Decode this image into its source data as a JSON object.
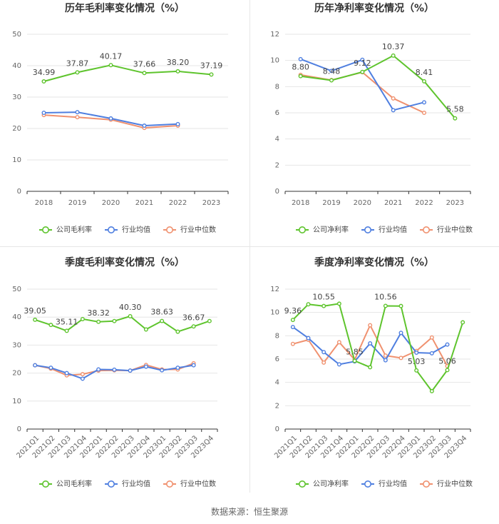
{
  "colors": {
    "company": "#5ec42d",
    "industry_avg": "#4f7fe0",
    "industry_median": "#f0916f",
    "grid": "#e6e6e6",
    "axis": "#333333",
    "tick_text": "#666666"
  },
  "source_text": "数据来源：恒生聚源",
  "chart_data": [
    {
      "type": "line",
      "title": "历年毛利率变化情况（%）",
      "categories": [
        "2018",
        "2019",
        "2020",
        "2021",
        "2022",
        "2023"
      ],
      "ylim": [
        0,
        50
      ],
      "yticks": [
        0,
        10,
        20,
        30,
        40,
        50
      ],
      "series": [
        {
          "name": "公司毛利率",
          "key": "company",
          "values": [
            34.99,
            37.87,
            40.17,
            37.66,
            38.2,
            37.19
          ]
        },
        {
          "name": "行业均值",
          "key": "industry_avg",
          "values": [
            25.0,
            25.2,
            23.2,
            20.9,
            21.4,
            null
          ]
        },
        {
          "name": "行业中位数",
          "key": "industry_median",
          "values": [
            24.3,
            23.6,
            22.8,
            20.2,
            20.9,
            null
          ]
        }
      ],
      "annotations": [
        {
          "series": 0,
          "index": 0,
          "text": "34.99"
        },
        {
          "series": 0,
          "index": 1,
          "text": "37.87"
        },
        {
          "series": 0,
          "index": 2,
          "text": "40.17"
        },
        {
          "series": 0,
          "index": 3,
          "text": "37.66"
        },
        {
          "series": 0,
          "index": 4,
          "text": "38.20"
        },
        {
          "series": 0,
          "index": 5,
          "text": "37.19"
        }
      ]
    },
    {
      "type": "line",
      "title": "历年净利率变化情况（%）",
      "categories": [
        "2018",
        "2019",
        "2020",
        "2021",
        "2022",
        "2023"
      ],
      "ylim": [
        0,
        12
      ],
      "yticks": [
        0,
        2,
        4,
        6,
        8,
        10,
        12
      ],
      "series": [
        {
          "name": "公司净利率",
          "key": "company",
          "values": [
            8.8,
            8.48,
            9.12,
            10.37,
            8.41,
            5.58
          ]
        },
        {
          "name": "行业均值",
          "key": "industry_avg",
          "values": [
            10.1,
            9.2,
            10.05,
            6.2,
            6.8,
            null
          ]
        },
        {
          "name": "行业中位数",
          "key": "industry_median",
          "values": [
            8.9,
            8.5,
            9.1,
            7.1,
            6.0,
            null
          ]
        }
      ],
      "annotations": [
        {
          "series": 0,
          "index": 0,
          "text": "8.80"
        },
        {
          "series": 0,
          "index": 1,
          "text": "8.48"
        },
        {
          "series": 0,
          "index": 2,
          "text": "9.12"
        },
        {
          "series": 0,
          "index": 3,
          "text": "10.37"
        },
        {
          "series": 0,
          "index": 4,
          "text": "8.41"
        },
        {
          "series": 0,
          "index": 5,
          "text": "5.58"
        }
      ]
    },
    {
      "type": "line",
      "title": "季度毛利率变化情况（%）",
      "categories": [
        "2021Q1",
        "2021Q2",
        "2021Q3",
        "2021Q4",
        "2022Q1",
        "2022Q2",
        "2022Q3",
        "2022Q4",
        "2023Q1",
        "2023Q2",
        "2023Q3",
        "2023Q4"
      ],
      "ylim": [
        0,
        50
      ],
      "yticks": [
        0,
        10,
        20,
        30,
        40,
        50
      ],
      "series": [
        {
          "name": "公司毛利率",
          "key": "company",
          "values": [
            39.05,
            37.2,
            35.11,
            39.3,
            38.32,
            38.6,
            40.3,
            35.6,
            38.63,
            34.8,
            36.67,
            38.6
          ]
        },
        {
          "name": "行业均值",
          "key": "industry_avg",
          "values": [
            22.8,
            21.9,
            20.0,
            18.0,
            21.3,
            21.2,
            20.9,
            22.3,
            21.0,
            21.9,
            22.8,
            null
          ]
        },
        {
          "name": "行业中位数",
          "key": "industry_median",
          "values": [
            22.8,
            21.6,
            19.2,
            19.6,
            20.9,
            21.0,
            20.9,
            22.9,
            21.3,
            21.3,
            23.5,
            null
          ]
        }
      ],
      "annotations": [
        {
          "series": 0,
          "index": 0,
          "text": "39.05"
        },
        {
          "series": 0,
          "index": 2,
          "text": "35.11"
        },
        {
          "series": 0,
          "index": 4,
          "text": "38.32"
        },
        {
          "series": 0,
          "index": 6,
          "text": "40.30"
        },
        {
          "series": 0,
          "index": 8,
          "text": "38.63"
        },
        {
          "series": 0,
          "index": 10,
          "text": "36.67"
        }
      ]
    },
    {
      "type": "line",
      "title": "季度净利率变化情况（%）",
      "categories": [
        "2021Q1",
        "2021Q2",
        "2021Q3",
        "2021Q4",
        "2022Q1",
        "2022Q2",
        "2022Q3",
        "2022Q4",
        "2023Q1",
        "2023Q2",
        "2023Q3",
        "2023Q4"
      ],
      "ylim": [
        0,
        12
      ],
      "yticks": [
        0,
        2,
        4,
        6,
        8,
        10,
        12
      ],
      "series": [
        {
          "name": "公司净利率",
          "key": "company",
          "values": [
            9.36,
            10.7,
            10.55,
            10.75,
            5.85,
            5.3,
            10.56,
            10.55,
            5.03,
            3.25,
            5.06,
            9.15
          ]
        },
        {
          "name": "行业均值",
          "key": "industry_avg",
          "values": [
            8.75,
            7.8,
            6.6,
            5.55,
            5.8,
            7.35,
            5.9,
            8.25,
            6.55,
            6.5,
            7.25,
            null
          ]
        },
        {
          "name": "行业中位数",
          "key": "industry_median",
          "values": [
            7.3,
            7.65,
            5.7,
            7.45,
            5.95,
            8.9,
            6.3,
            6.1,
            6.7,
            7.85,
            5.4,
            null
          ]
        }
      ],
      "annotations": [
        {
          "series": 0,
          "index": 0,
          "text": "9.36"
        },
        {
          "series": 0,
          "index": 2,
          "text": "10.55"
        },
        {
          "series": 0,
          "index": 4,
          "text": "5.85"
        },
        {
          "series": 0,
          "index": 6,
          "text": "10.56"
        },
        {
          "series": 0,
          "index": 8,
          "text": "5.03"
        },
        {
          "series": 0,
          "index": 10,
          "text": "5.06"
        }
      ]
    }
  ]
}
